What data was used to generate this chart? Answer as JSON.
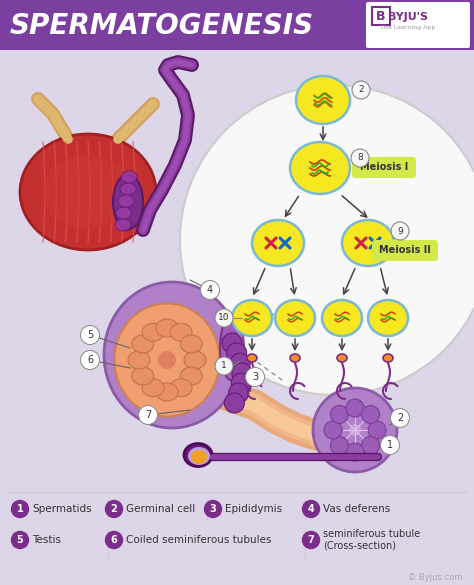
{
  "title": "SPERMATOGENESIS",
  "title_bg_color": "#7b3fa0",
  "title_text_color": "#ffffff",
  "bg_color": "#ddd5e8",
  "legend_circle_color": "#7b2d8b",
  "legend_text_color": "#333333",
  "meiosis1_label": "Meiosis I",
  "meiosis2_label": "Meiosis II",
  "meiosis_label_color": "#d4e84a",
  "cell_fill": "#f5e820",
  "cell_edge": "#7ab8d4",
  "arrow_color": "#444444",
  "sperm_purple": "#7b2d8b",
  "sperm_orange": "#f59020",
  "divider_color": "#cccccc",
  "footer_color": "#aaaaaa",
  "circle_bg": "#f8f8f8",
  "circle_edge": "#cccccc",
  "testis_outer": "#c84040",
  "testis_inner": "#b83030",
  "testis_epid": "#7b2d8b",
  "tube_skin": "#f0b890",
  "semtubule_fill": "#c090d0",
  "semtubule_edge": "#9b59b6",
  "inner_dot_fill": "#9b59b6",
  "label_circle_fill": "#f5f5f5",
  "label_circle_edge": "#888888",
  "vas_deferens_color": "#7b2d8b",
  "ligament_color": "#d4a060"
}
